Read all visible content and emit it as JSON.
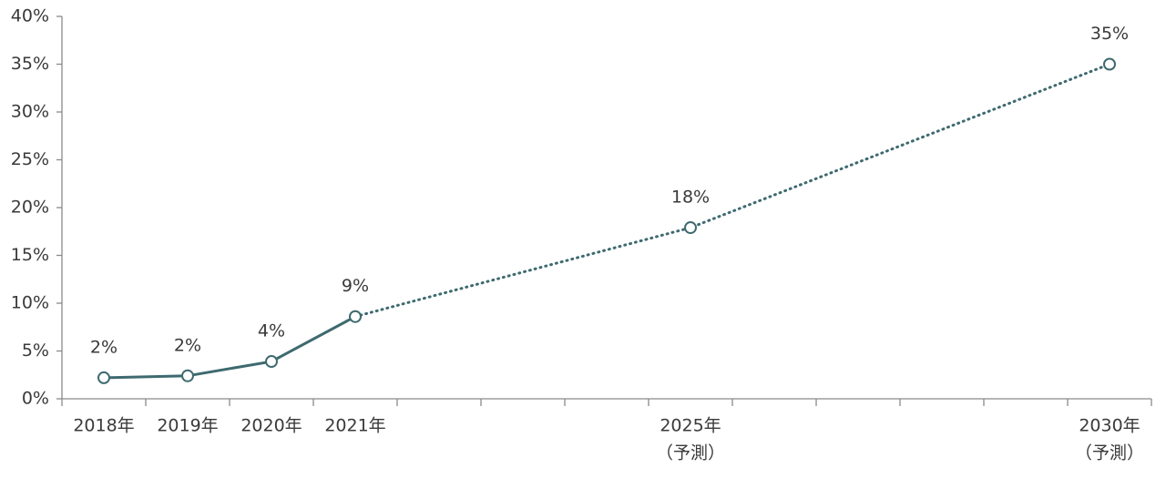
{
  "chart_data": {
    "type": "line",
    "categories": [
      "2018年",
      "2019年",
      "2020年",
      "2021年",
      null,
      null,
      null,
      "2025年",
      null,
      null,
      null,
      null,
      "2030年"
    ],
    "category_notes": [
      null,
      null,
      null,
      null,
      null,
      null,
      null,
      "（予測）",
      null,
      null,
      null,
      null,
      "（予測）"
    ],
    "values": [
      2.2,
      2.4,
      3.9,
      8.6,
      null,
      null,
      null,
      17.9,
      null,
      null,
      null,
      null,
      35
    ],
    "value_labels": [
      "2%",
      "2%",
      "4%",
      "9%",
      null,
      null,
      null,
      "18%",
      null,
      null,
      null,
      null,
      "35%"
    ],
    "color": "#3e6a6f",
    "ylim": [
      0,
      40
    ],
    "yticks": [
      {
        "value": 0,
        "label": "0%"
      },
      {
        "value": 5,
        "label": "5%"
      },
      {
        "value": 10,
        "label": "10%"
      },
      {
        "value": 15,
        "label": "15%"
      },
      {
        "value": 20,
        "label": "20%"
      },
      {
        "value": 25,
        "label": "25%"
      },
      {
        "value": 30,
        "label": "30%"
      },
      {
        "value": 35,
        "label": "35%"
      },
      {
        "value": 40,
        "label": "40%"
      }
    ]
  }
}
